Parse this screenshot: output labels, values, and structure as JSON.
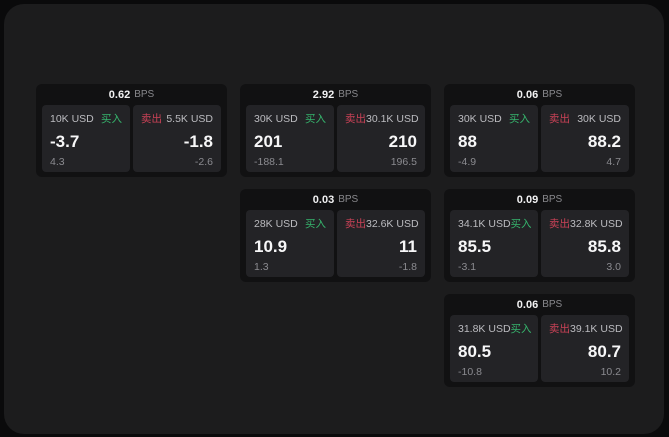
{
  "labels": {
    "bps_unit": "BPS",
    "buy": "买入",
    "sell": "卖出"
  },
  "colors": {
    "page_bg": "#0a0a0b",
    "panel_bg": "#1c1c1d",
    "card_bg": "#111112",
    "cell_bg": "#232326",
    "buy_accent": "#36b56d",
    "sell_accent": "#cb4257"
  },
  "cards": [
    {
      "bps": "0.62",
      "buy": {
        "size": "10K USD",
        "value": "-3.7",
        "delta": "4.3"
      },
      "sell": {
        "size": "5.5K USD",
        "value": "-1.8",
        "delta": "-2.6"
      }
    },
    {
      "bps": "2.92",
      "buy": {
        "size": "30K USD",
        "value": "201",
        "delta": "-188.1"
      },
      "sell": {
        "size": "30.1K USD",
        "value": "210",
        "delta": "196.5"
      }
    },
    {
      "bps": "0.06",
      "buy": {
        "size": "30K USD",
        "value": "88",
        "delta": "-4.9"
      },
      "sell": {
        "size": "30K USD",
        "value": "88.2",
        "delta": "4.7"
      }
    },
    {
      "bps": "0.03",
      "buy": {
        "size": "28K USD",
        "value": "10.9",
        "delta": "1.3"
      },
      "sell": {
        "size": "32.6K USD",
        "value": "11",
        "delta": "-1.8"
      }
    },
    {
      "bps": "0.09",
      "buy": {
        "size": "34.1K USD",
        "value": "85.5",
        "delta": "-3.1"
      },
      "sell": {
        "size": "32.8K USD",
        "value": "85.8",
        "delta": "3.0"
      }
    },
    {
      "bps": "0.06",
      "buy": {
        "size": "31.8K USD",
        "value": "80.5",
        "delta": "-10.8"
      },
      "sell": {
        "size": "39.1K USD",
        "value": "80.7",
        "delta": "10.2"
      }
    }
  ]
}
